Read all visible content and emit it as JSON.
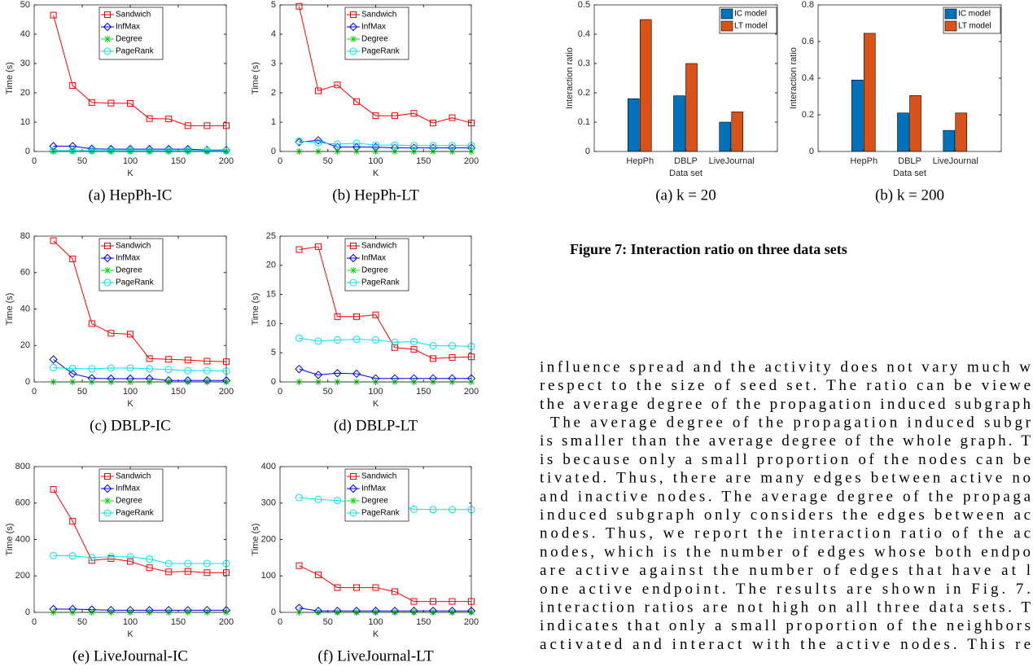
{
  "chart_data": [
    {
      "type": "line",
      "caption": "(a) HepPh-IC",
      "xlabel": "K",
      "ylabel": "Time (s)",
      "x": [
        20,
        40,
        60,
        80,
        100,
        120,
        140,
        160,
        180,
        200
      ],
      "xlim": [
        0,
        200
      ],
      "xticks": [
        0,
        50,
        100,
        150,
        200
      ],
      "ylim": [
        0,
        50
      ],
      "yticks": [
        0,
        10,
        20,
        30,
        40,
        50
      ],
      "series": [
        {
          "name": "Sandwich",
          "color": "#ff0000",
          "marker": "square",
          "values": [
            46.5,
            22.5,
            16.7,
            16.5,
            16.4,
            11.2,
            11.1,
            8.8,
            8.8,
            8.8
          ]
        },
        {
          "name": "InfMax",
          "color": "#0000ff",
          "marker": "diamond",
          "values": [
            1.8,
            1.8,
            0.9,
            0.8,
            0.8,
            0.8,
            0.8,
            0.8,
            0.5,
            0.5
          ]
        },
        {
          "name": "Degree",
          "color": "#00dd00",
          "marker": "asterisk",
          "values": [
            0,
            0,
            0,
            0,
            0,
            0,
            0,
            0,
            0,
            0
          ]
        },
        {
          "name": "PageRank",
          "color": "#00e5ee",
          "marker": "circle",
          "values": [
            0.3,
            0.3,
            0.3,
            0.3,
            0.3,
            0.3,
            0.3,
            0.3,
            0.3,
            0.3
          ]
        }
      ]
    },
    {
      "type": "line",
      "caption": "(b) HepPh-LT",
      "xlabel": "K",
      "ylabel": "Time (s)",
      "x": [
        20,
        40,
        60,
        80,
        100,
        120,
        140,
        160,
        180,
        200
      ],
      "xlim": [
        0,
        200
      ],
      "xticks": [
        0,
        50,
        100,
        150,
        200
      ],
      "ylim": [
        0,
        5
      ],
      "yticks": [
        0,
        1,
        2,
        3,
        4,
        5
      ],
      "series": [
        {
          "name": "Sandwich",
          "color": "#ff0000",
          "marker": "square",
          "values": [
            4.95,
            2.07,
            2.27,
            1.7,
            1.22,
            1.22,
            1.3,
            0.97,
            1.15,
            0.97
          ]
        },
        {
          "name": "InfMax",
          "color": "#0000ff",
          "marker": "diamond",
          "values": [
            0.32,
            0.38,
            0.15,
            0.15,
            0.15,
            0.12,
            0.12,
            0.12,
            0.12,
            0.12
          ]
        },
        {
          "name": "Degree",
          "color": "#00dd00",
          "marker": "asterisk",
          "values": [
            0,
            0,
            0,
            0,
            0,
            0,
            0,
            0,
            0,
            0
          ]
        },
        {
          "name": "PageRank",
          "color": "#00e5ee",
          "marker": "circle",
          "values": [
            0.35,
            0.3,
            0.25,
            0.28,
            0.22,
            0.22,
            0.2,
            0.2,
            0.2,
            0.2
          ]
        }
      ]
    },
    {
      "type": "line",
      "caption": "(c) DBLP-IC",
      "xlabel": "K",
      "ylabel": "Time (s)",
      "x": [
        20,
        40,
        60,
        80,
        100,
        120,
        140,
        160,
        180,
        200
      ],
      "xlim": [
        0,
        200
      ],
      "xticks": [
        0,
        50,
        100,
        150,
        200
      ],
      "ylim": [
        0,
        80
      ],
      "yticks": [
        0,
        20,
        40,
        60,
        80
      ],
      "series": [
        {
          "name": "Sandwich",
          "color": "#ff0000",
          "marker": "square",
          "values": [
            77.5,
            67.5,
            32,
            26.7,
            26.2,
            12.8,
            12.4,
            12,
            11.4,
            11.1
          ]
        },
        {
          "name": "InfMax",
          "color": "#0000ff",
          "marker": "diamond",
          "values": [
            12.3,
            4.5,
            2,
            1.8,
            1.8,
            1.8,
            0.8,
            0.8,
            0.8,
            0.8
          ]
        },
        {
          "name": "Degree",
          "color": "#00dd00",
          "marker": "asterisk",
          "values": [
            0,
            0,
            0,
            0,
            0,
            0,
            0,
            0,
            0,
            0
          ]
        },
        {
          "name": "PageRank",
          "color": "#00e5ee",
          "marker": "circle",
          "values": [
            7.8,
            7.3,
            7.2,
            7.6,
            7.6,
            7.2,
            6.8,
            6.2,
            6.2,
            6
          ]
        }
      ]
    },
    {
      "type": "line",
      "caption": "(d) DBLP-LT",
      "xlabel": "K",
      "ylabel": "Time (s)",
      "x": [
        20,
        40,
        60,
        80,
        100,
        120,
        140,
        160,
        180,
        200
      ],
      "xlim": [
        0,
        200
      ],
      "xticks": [
        0,
        50,
        100,
        150,
        200
      ],
      "ylim": [
        0,
        25
      ],
      "yticks": [
        0,
        5,
        10,
        15,
        20,
        25
      ],
      "series": [
        {
          "name": "Sandwich",
          "color": "#ff0000",
          "marker": "square",
          "values": [
            22.7,
            23.2,
            11.2,
            11.2,
            11.5,
            5.9,
            5.6,
            4,
            4.2,
            4.3
          ]
        },
        {
          "name": "InfMax",
          "color": "#0000ff",
          "marker": "diamond",
          "values": [
            2.2,
            1.2,
            1.5,
            1.4,
            0.6,
            0.6,
            0.6,
            0.6,
            0.6,
            0.6
          ]
        },
        {
          "name": "Degree",
          "color": "#00dd00",
          "marker": "asterisk",
          "values": [
            0,
            0,
            0,
            0,
            0,
            0,
            0,
            0,
            0,
            0
          ]
        },
        {
          "name": "PageRank",
          "color": "#00e5ee",
          "marker": "circle",
          "values": [
            7.5,
            7,
            7.2,
            7.3,
            7.2,
            6.8,
            6.9,
            6.2,
            6.2,
            6.1
          ]
        }
      ]
    },
    {
      "type": "line",
      "caption": "(e) LiveJournal-IC",
      "xlabel": "K",
      "ylabel": "Time (s)",
      "x": [
        20,
        40,
        60,
        80,
        100,
        120,
        140,
        160,
        180,
        200
      ],
      "xlim": [
        0,
        200
      ],
      "xticks": [
        0,
        50,
        100,
        150,
        200
      ],
      "ylim": [
        0,
        800
      ],
      "yticks": [
        0,
        200,
        400,
        600,
        800
      ],
      "series": [
        {
          "name": "Sandwich",
          "color": "#ff0000",
          "marker": "square",
          "values": [
            675,
            500,
            285,
            295,
            280,
            245,
            222,
            225,
            218,
            218
          ]
        },
        {
          "name": "InfMax",
          "color": "#0000ff",
          "marker": "diamond",
          "values": [
            18,
            18,
            15,
            12,
            12,
            12,
            12,
            12,
            12,
            12
          ]
        },
        {
          "name": "Degree",
          "color": "#00dd00",
          "marker": "asterisk",
          "values": [
            0,
            0,
            0,
            0,
            0,
            0,
            0,
            0,
            0,
            0
          ]
        },
        {
          "name": "PageRank",
          "color": "#00e5ee",
          "marker": "circle",
          "values": [
            312,
            310,
            300,
            305,
            305,
            292,
            268,
            268,
            268,
            268
          ]
        }
      ]
    },
    {
      "type": "line",
      "caption": "(f) LiveJournal-LT",
      "xlabel": "K",
      "ylabel": "Time (s)",
      "x": [
        20,
        40,
        60,
        80,
        100,
        120,
        140,
        160,
        180,
        200
      ],
      "xlim": [
        0,
        200
      ],
      "xticks": [
        0,
        50,
        100,
        150,
        200
      ],
      "ylim": [
        0,
        400
      ],
      "yticks": [
        0,
        100,
        200,
        300,
        400
      ],
      "series": [
        {
          "name": "Sandwich",
          "color": "#ff0000",
          "marker": "square",
          "values": [
            128,
            103,
            68,
            68,
            68,
            57,
            30,
            30,
            30,
            30
          ]
        },
        {
          "name": "InfMax",
          "color": "#0000ff",
          "marker": "diamond",
          "values": [
            12,
            4,
            4,
            4,
            4,
            4,
            4,
            4,
            4,
            4
          ]
        },
        {
          "name": "Degree",
          "color": "#00dd00",
          "marker": "asterisk",
          "values": [
            0,
            0,
            0,
            0,
            0,
            0,
            0,
            0,
            0,
            0
          ]
        },
        {
          "name": "PageRank",
          "color": "#00e5ee",
          "marker": "circle",
          "values": [
            315,
            310,
            307,
            302,
            300,
            296,
            283,
            282,
            282,
            282
          ]
        }
      ]
    },
    {
      "type": "bar",
      "caption": "(a) k = 20",
      "xlabel": "Data set",
      "ylabel": "Interaction ratio",
      "categories": [
        "HepPh",
        "DBLP",
        "LiveJournal"
      ],
      "ylim": [
        0,
        0.5
      ],
      "yticks": [
        0,
        0.1,
        0.2,
        0.3,
        0.4,
        0.5
      ],
      "series": [
        {
          "name": "IC model",
          "color": "#0072bd",
          "values": [
            0.18,
            0.19,
            0.1
          ]
        },
        {
          "name": "LT model",
          "color": "#d95319",
          "values": [
            0.45,
            0.3,
            0.135
          ]
        }
      ]
    },
    {
      "type": "bar",
      "caption": "(b) k = 200",
      "xlabel": "Data set",
      "ylabel": "Interaction ratio",
      "categories": [
        "HepPh",
        "DBLP",
        "LiveJournal"
      ],
      "ylim": [
        0,
        0.8
      ],
      "yticks": [
        0,
        0.2,
        0.4,
        0.6,
        0.8
      ],
      "series": [
        {
          "name": "IC model",
          "color": "#0072bd",
          "values": [
            0.39,
            0.21,
            0.115
          ]
        },
        {
          "name": "LT model",
          "color": "#d95319",
          "values": [
            0.645,
            0.305,
            0.21
          ]
        }
      ]
    }
  ],
  "figure_caption": "Figure 7: Interaction ratio on three data sets",
  "paragraphs": [
    [
      "influence spread and the activity does not vary much w",
      "respect to the size of seed set. The ratio can be viewe",
      "the average degree of the propagation induced subgraph"
    ],
    [
      "The average degree of the propagation induced subgr",
      "is smaller than the average degree of the whole graph. T",
      "is because only a small proportion of the nodes can be",
      "tivated. Thus, there are many edges between active no",
      "and inactive nodes. The average degree of the propaga",
      "induced subgraph only considers the edges between ac",
      "nodes. Thus, we report the interaction ratio of the ac",
      "nodes, which is the number of edges whose both endpo",
      "are active against the number of edges that have at l",
      "one active endpoint. The results are shown in Fig. 7.",
      "interaction ratios are not high on all three data sets. T",
      "indicates that only a small proportion of the neighbors",
      "activated and interact with the active nodes. This re"
    ]
  ]
}
